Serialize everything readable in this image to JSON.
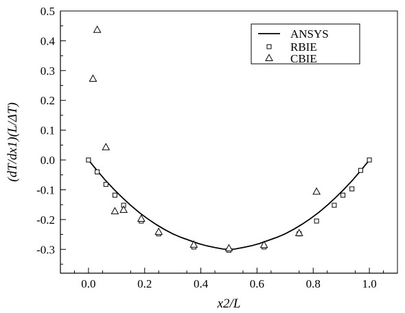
{
  "chart_data": {
    "type": "scatter",
    "xlabel": "x2/L",
    "ylabel": "(dT/dx1)(L/ΔT)",
    "xlim": [
      -0.1,
      1.1
    ],
    "ylim": [
      -0.38,
      0.5
    ],
    "x_ticks": [
      0.0,
      0.2,
      0.4,
      0.6,
      0.8,
      1.0
    ],
    "x_tick_labels": [
      "0.0",
      "0.2",
      "0.4",
      "0.6",
      "0.8",
      "1.0"
    ],
    "y_ticks": [
      0.5,
      0.4,
      0.3,
      0.2,
      0.1,
      0.0,
      -0.1,
      -0.2,
      -0.3
    ],
    "y_tick_labels": [
      "0.5",
      "0.4",
      "0.3",
      "0.2",
      "0.1",
      "0.0",
      "-0.1",
      "-0.2",
      "-0.3"
    ],
    "grid": false,
    "legend_position": "top-right",
    "series": [
      {
        "name": "ANSYS",
        "kind": "line",
        "color": "#000000",
        "x": [
          0.0,
          0.03,
          0.06,
          0.09,
          0.12,
          0.15,
          0.18,
          0.21,
          0.24,
          0.27,
          0.3,
          0.33,
          0.36,
          0.39,
          0.42,
          0.45,
          0.48,
          0.5,
          0.52,
          0.55,
          0.58,
          0.61,
          0.64,
          0.67,
          0.7,
          0.73,
          0.76,
          0.79,
          0.82,
          0.85,
          0.88,
          0.91,
          0.94,
          0.97,
          1.0
        ],
        "y": [
          0.0,
          -0.035,
          -0.068,
          -0.098,
          -0.126,
          -0.152,
          -0.176,
          -0.197,
          -0.216,
          -0.233,
          -0.248,
          -0.26,
          -0.27,
          -0.28,
          -0.288,
          -0.294,
          -0.299,
          -0.3,
          -0.299,
          -0.294,
          -0.288,
          -0.28,
          -0.27,
          -0.26,
          -0.248,
          -0.233,
          -0.216,
          -0.197,
          -0.176,
          -0.152,
          -0.126,
          -0.098,
          -0.068,
          -0.035,
          0.0
        ]
      },
      {
        "name": "RBIE",
        "kind": "marker",
        "marker": "square",
        "x": [
          0.0,
          0.031,
          0.062,
          0.094,
          0.125,
          0.188,
          0.25,
          0.375,
          0.5,
          0.625,
          0.75,
          0.812,
          0.875,
          0.906,
          0.938,
          0.969,
          1.0
        ],
        "y": [
          0.0,
          -0.04,
          -0.082,
          -0.118,
          -0.152,
          -0.205,
          -0.248,
          -0.292,
          -0.303,
          -0.292,
          -0.248,
          -0.205,
          -0.152,
          -0.118,
          -0.097,
          -0.035,
          0.0
        ]
      },
      {
        "name": "CBIE",
        "kind": "marker",
        "marker": "triangle",
        "x": [
          0.016,
          0.031,
          0.062,
          0.094,
          0.125,
          0.188,
          0.25,
          0.375,
          0.5,
          0.625,
          0.75,
          0.812
        ],
        "y": [
          0.272,
          0.436,
          0.042,
          -0.173,
          -0.168,
          -0.198,
          -0.242,
          -0.285,
          -0.297,
          -0.286,
          -0.246,
          -0.107
        ]
      }
    ]
  }
}
